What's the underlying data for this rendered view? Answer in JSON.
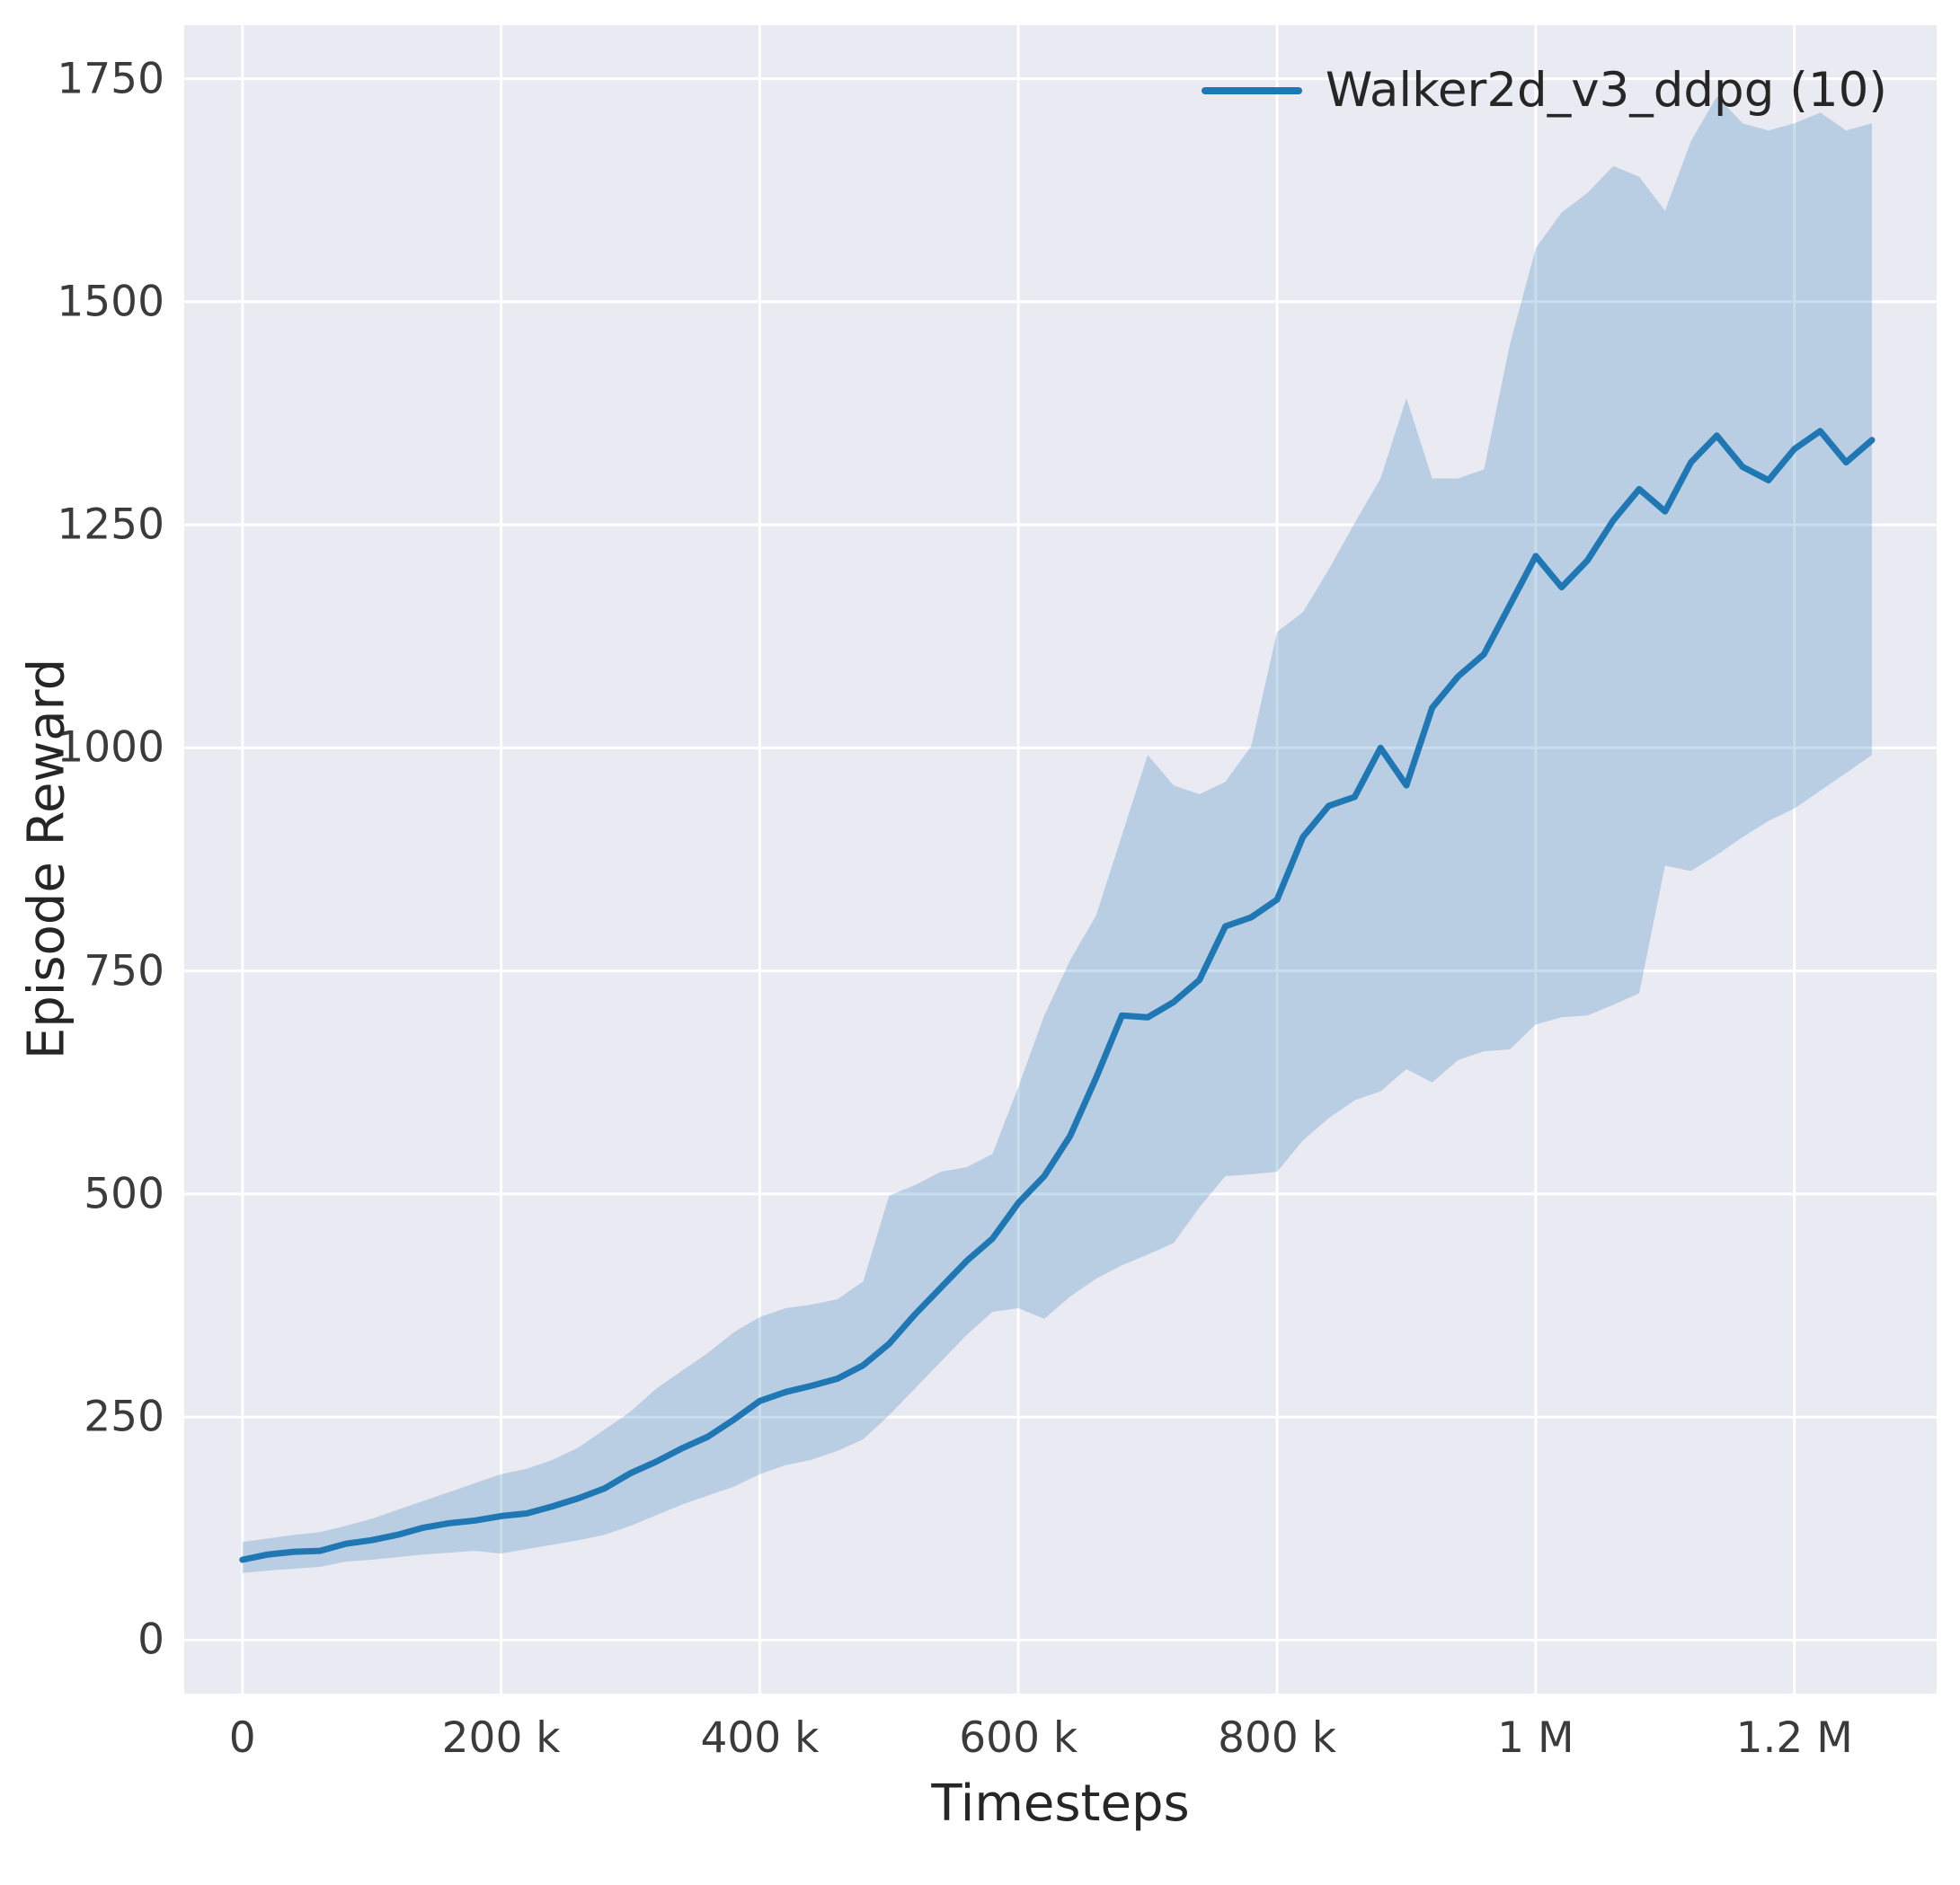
{
  "chart_data": {
    "type": "line",
    "title": "",
    "xlabel": "Timesteps",
    "ylabel": "Episode Reward",
    "legend_position": "upper right",
    "grid": true,
    "plot_background": "#eaeaf2",
    "grid_color": "#ffffff",
    "line_color": "#1f77b4",
    "band_color": "#1f77b4",
    "band_opacity": 0.24,
    "xlim": [
      -45000,
      1310000
    ],
    "ylim": [
      -60,
      1810
    ],
    "xticks": [
      {
        "value": 0,
        "label": "0"
      },
      {
        "value": 200000,
        "label": "200 k"
      },
      {
        "value": 400000,
        "label": "400 k"
      },
      {
        "value": 600000,
        "label": "600 k"
      },
      {
        "value": 800000,
        "label": "800 k"
      },
      {
        "value": 1000000,
        "label": "1 M"
      },
      {
        "value": 1200000,
        "label": "1.2 M"
      }
    ],
    "yticks": [
      {
        "value": 0,
        "label": "0"
      },
      {
        "value": 250,
        "label": "250"
      },
      {
        "value": 500,
        "label": "500"
      },
      {
        "value": 750,
        "label": "750"
      },
      {
        "value": 1000,
        "label": "1000"
      },
      {
        "value": 1250,
        "label": "1250"
      },
      {
        "value": 1500,
        "label": "1500"
      },
      {
        "value": 1750,
        "label": "1750"
      }
    ],
    "series": [
      {
        "name": "Walker2d_v3_ddpg (10)",
        "x": [
          0,
          20000,
          40000,
          60000,
          80000,
          100000,
          120000,
          140000,
          160000,
          180000,
          200000,
          220000,
          240000,
          260000,
          280000,
          300000,
          320000,
          340000,
          360000,
          380000,
          400000,
          420000,
          440000,
          460000,
          480000,
          500000,
          520000,
          540000,
          560000,
          580000,
          600000,
          620000,
          640000,
          660000,
          680000,
          700000,
          720000,
          740000,
          760000,
          780000,
          800000,
          820000,
          840000,
          860000,
          880000,
          900000,
          920000,
          940000,
          960000,
          980000,
          1000000,
          1020000,
          1040000,
          1060000,
          1080000,
          1100000,
          1120000,
          1140000,
          1160000,
          1180000,
          1200000,
          1220000,
          1240000,
          1260000
        ],
        "mean": [
          90,
          96,
          99,
          100,
          108,
          112,
          118,
          126,
          131,
          134,
          139,
          142,
          150,
          159,
          170,
          187,
          200,
          215,
          228,
          247,
          268,
          278,
          285,
          293,
          308,
          332,
          365,
          395,
          425,
          450,
          490,
          520,
          565,
          630,
          700,
          698,
          715,
          740,
          800,
          810,
          830,
          900,
          935,
          945,
          1000,
          958,
          1045,
          1080,
          1105,
          1160,
          1215,
          1180,
          1210,
          1255,
          1290,
          1265,
          1320,
          1350,
          1315,
          1300,
          1335,
          1355,
          1320,
          1345
        ],
        "lower": [
          75,
          78,
          80,
          82,
          88,
          90,
          93,
          96,
          98,
          100,
          97,
          102,
          107,
          112,
          118,
          128,
          140,
          152,
          162,
          172,
          186,
          196,
          202,
          212,
          225,
          252,
          282,
          312,
          342,
          368,
          372,
          360,
          385,
          405,
          420,
          432,
          445,
          485,
          520,
          522,
          525,
          560,
          585,
          605,
          615,
          640,
          625,
          650,
          660,
          662,
          690,
          698,
          700,
          712,
          725,
          868,
          862,
          880,
          900,
          918,
          932,
          952,
          972,
          992
        ],
        "upper": [
          110,
          114,
          118,
          121,
          128,
          136,
          146,
          156,
          166,
          176,
          186,
          192,
          202,
          216,
          236,
          256,
          282,
          302,
          322,
          345,
          362,
          372,
          376,
          382,
          402,
          498,
          510,
          525,
          530,
          545,
          620,
          700,
          762,
          812,
          902,
          992,
          958,
          948,
          962,
          1002,
          1130,
          1152,
          1200,
          1252,
          1302,
          1392,
          1302,
          1302,
          1312,
          1452,
          1560,
          1600,
          1622,
          1652,
          1640,
          1602,
          1680,
          1730,
          1700,
          1692,
          1700,
          1712,
          1692,
          1700
        ]
      }
    ]
  }
}
